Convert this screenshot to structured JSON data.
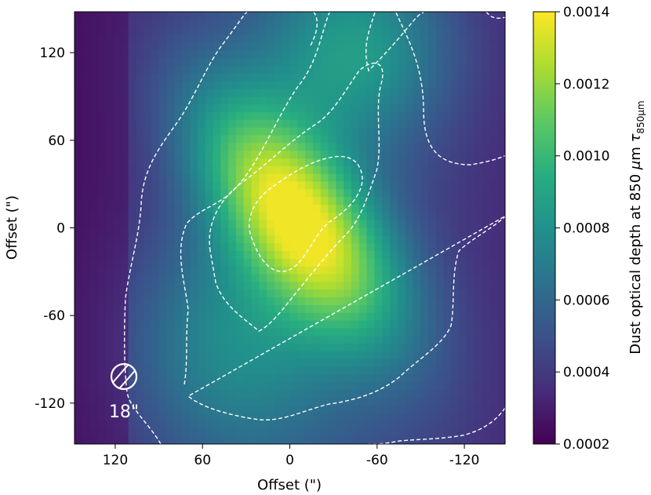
{
  "chart_data": {
    "type": "heatmap",
    "title": "",
    "xlabel": "Offset (\")",
    "ylabel": "Offset (\")",
    "xlim": [
      148,
      -148
    ],
    "ylim": [
      -148,
      148
    ],
    "x_ticks": [
      120,
      60,
      0,
      -60,
      -120
    ],
    "x_tick_labels": [
      "120",
      "60",
      "0",
      "-60",
      "-120"
    ],
    "y_ticks": [
      120,
      60,
      0,
      -60,
      -120
    ],
    "y_tick_labels": [
      "120",
      "60",
      "0",
      "-60",
      "-120"
    ],
    "colormap": "viridis",
    "colorbar": {
      "label_prefix": "Dust optical depth at 850 ",
      "label_mu": "μ",
      "label_unit": "m ",
      "label_tau": "τ",
      "label_sub": "850μm",
      "range": [
        0.0002,
        0.0014
      ],
      "ticks": [
        0.0014,
        0.0012,
        0.001,
        0.0008,
        0.0006,
        0.0004,
        0.0002
      ],
      "tick_labels": [
        "0.0014",
        "0.0012",
        "0.0010",
        "0.0008",
        "0.0006",
        "0.0004",
        "0.0002"
      ]
    },
    "peak": {
      "x": -5,
      "y": 8,
      "value": 0.00135
    },
    "contours": [
      {
        "level": 0.0013,
        "style": "dashed",
        "color": "#ffffff"
      },
      {
        "level": 0.001,
        "style": "dashed",
        "color": "#ffffff"
      },
      {
        "level": 0.0007,
        "style": "dashed",
        "color": "#ffffff"
      },
      {
        "level": 0.0004,
        "style": "dashed",
        "color": "#ffffff"
      }
    ],
    "beam": {
      "x": 116,
      "y": -103,
      "label": "18\""
    }
  }
}
